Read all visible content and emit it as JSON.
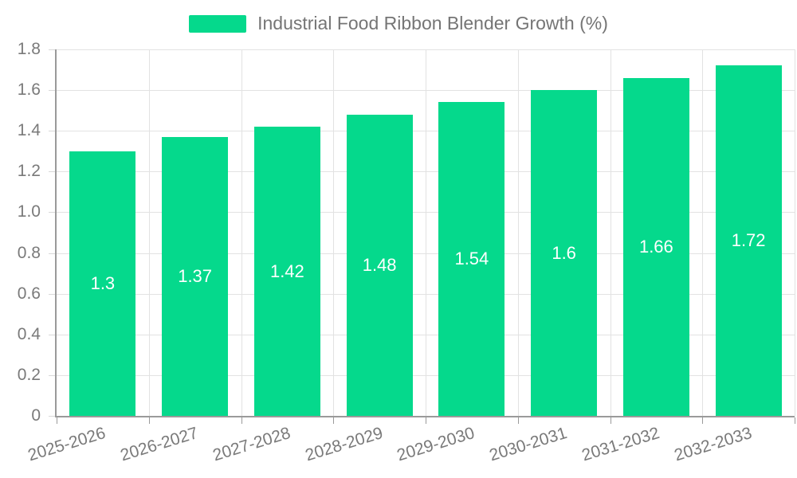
{
  "legend": {
    "label": "Industrial Food Ribbon Blender Growth (%)",
    "swatch_color": "#05d98c"
  },
  "chart_data": {
    "type": "bar",
    "title": "Industrial Food Ribbon Blender Growth (%)",
    "categories": [
      "2025-2026",
      "2026-2027",
      "2027-2028",
      "2028-2029",
      "2029-2030",
      "2030-2031",
      "2031-2032",
      "2032-2033"
    ],
    "values": [
      1.3,
      1.37,
      1.42,
      1.48,
      1.54,
      1.6,
      1.66,
      1.72
    ],
    "bar_labels": [
      "1.3",
      "1.37",
      "1.42",
      "1.48",
      "1.54",
      "1.6",
      "1.66",
      "1.72"
    ],
    "xlabel": "",
    "ylabel": "",
    "ylim": [
      0,
      1.8
    ],
    "ytick_step": 0.2,
    "ytick_labels": [
      "0",
      "0.2",
      "0.4",
      "0.6",
      "0.8",
      "1.0",
      "1.2",
      "1.4",
      "1.6",
      "1.8"
    ],
    "grid": true,
    "legend_position": "top-center",
    "bar_color": "#05d98c",
    "bar_label_color": "#ffffff",
    "axis_color": "#9a9a9a",
    "grid_color": "#e2e2e2",
    "axis_text_color": "#7a7a7a",
    "x_label_rotation_deg": -17
  }
}
